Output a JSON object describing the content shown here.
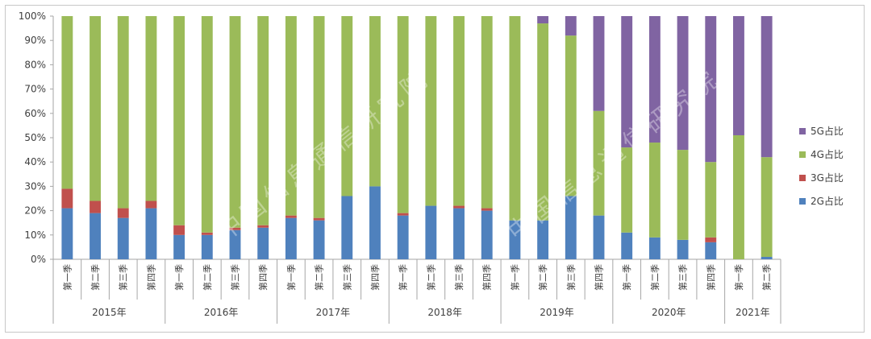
{
  "chart_data": {
    "type": "bar",
    "stacked": true,
    "y_format": "percent",
    "ylim": [
      0,
      100
    ],
    "y_ticks": [
      "0%",
      "10%",
      "20%",
      "30%",
      "40%",
      "50%",
      "60%",
      "70%",
      "80%",
      "90%",
      "100%"
    ],
    "groups": [
      {
        "year": "2015年",
        "quarters": [
          "第一季",
          "第二季",
          "第三季",
          "第四季"
        ]
      },
      {
        "year": "2016年",
        "quarters": [
          "第一季",
          "第二季",
          "第三季",
          "第四季"
        ]
      },
      {
        "year": "2017年",
        "quarters": [
          "第一季",
          "第二季",
          "第三季",
          "第四季"
        ]
      },
      {
        "year": "2018年",
        "quarters": [
          "第一季",
          "第二季",
          "第三季",
          "第四季"
        ]
      },
      {
        "year": "2019年",
        "quarters": [
          "第一季",
          "第二季",
          "第三季",
          "第四季"
        ]
      },
      {
        "year": "2020年",
        "quarters": [
          "第一季",
          "第二季",
          "第三季",
          "第四季"
        ]
      },
      {
        "year": "2021年",
        "quarters": [
          "第一季",
          "第二季"
        ]
      }
    ],
    "series": [
      {
        "name": "2G占比",
        "color": "#4f81bd",
        "values": [
          21,
          19,
          17,
          21,
          10,
          10,
          12,
          13,
          17,
          16,
          26,
          30,
          18,
          22,
          21,
          20,
          16,
          16,
          26,
          18,
          11,
          9,
          8,
          7,
          0,
          1
        ]
      },
      {
        "name": "3G占比",
        "color": "#c0504d",
        "values": [
          8,
          5,
          4,
          3,
          4,
          1,
          1,
          1,
          1,
          1,
          0,
          0,
          1,
          0,
          1,
          1,
          0,
          0,
          0,
          0,
          0,
          0,
          0,
          2,
          0,
          0
        ]
      },
      {
        "name": "4G占比",
        "color": "#9bbb59",
        "values": [
          71,
          76,
          79,
          76,
          86,
          89,
          87,
          86,
          82,
          83,
          74,
          70,
          81,
          78,
          78,
          79,
          84,
          81,
          66,
          43,
          35,
          39,
          37,
          31,
          51,
          41
        ]
      },
      {
        "name": "5G占比",
        "color": "#8064a2",
        "values": [
          0,
          0,
          0,
          0,
          0,
          0,
          0,
          0,
          0,
          0,
          0,
          0,
          0,
          0,
          0,
          0,
          0,
          3,
          8,
          39,
          54,
          52,
          55,
          60,
          49,
          58
        ]
      }
    ],
    "legend_position": "right",
    "grid": false,
    "watermark": "中国信息通信研究院"
  }
}
